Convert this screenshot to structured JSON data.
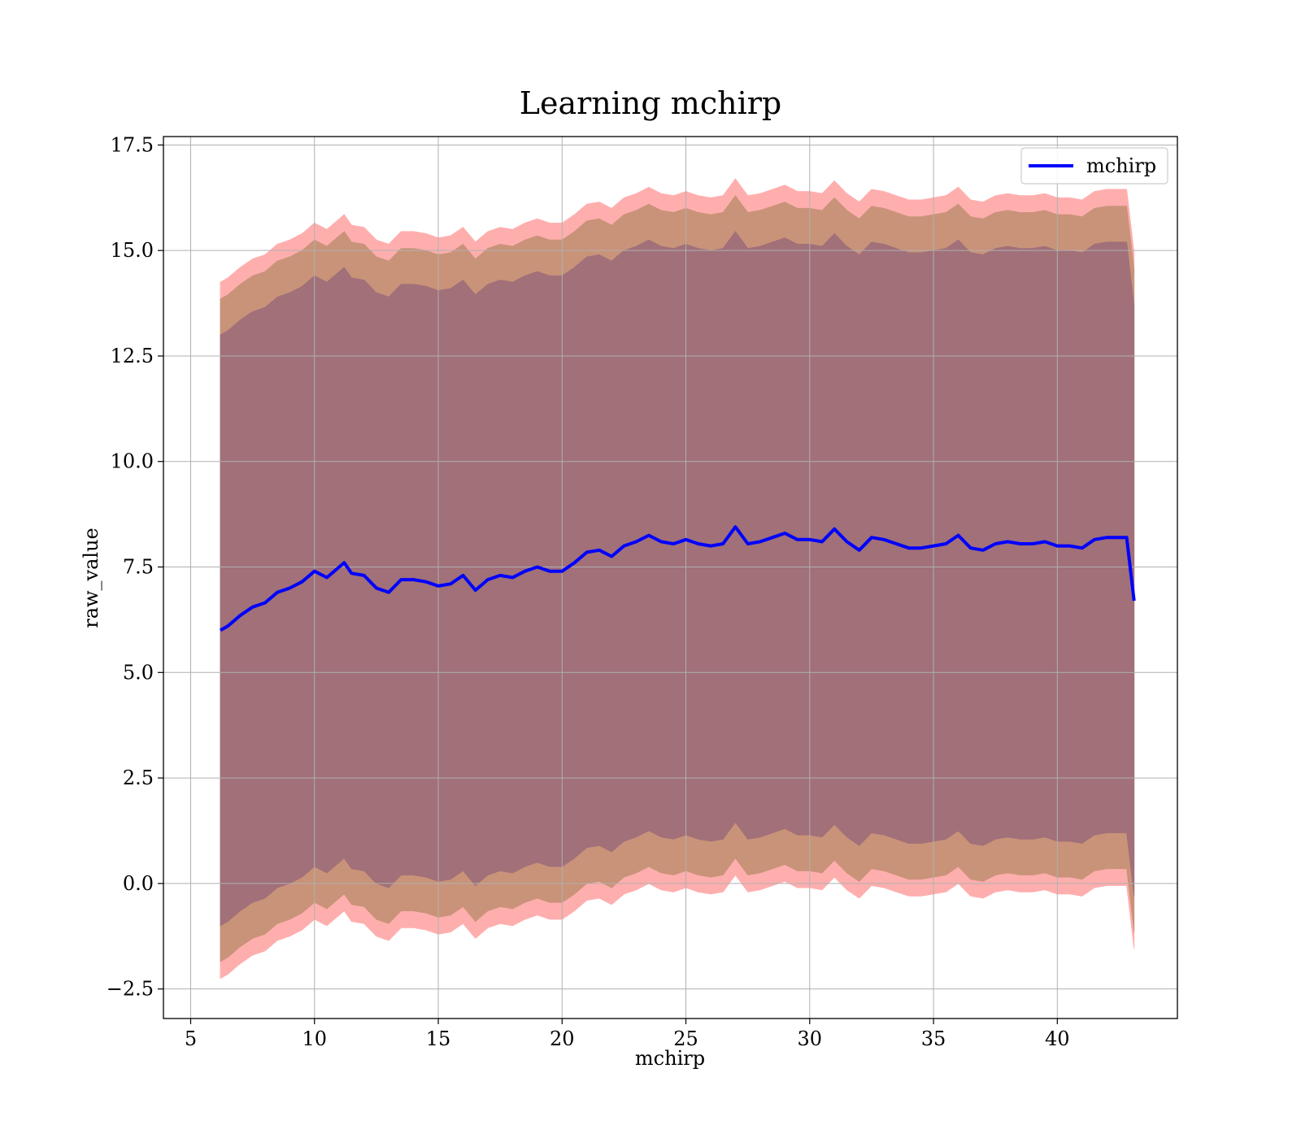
{
  "chart_data": {
    "type": "line",
    "title": "Learning mchirp",
    "xlabel": "mchirp",
    "ylabel": "raw_value",
    "xlim": [
      3.9,
      44.85
    ],
    "ylim": [
      -3.2,
      17.7
    ],
    "xticks": [
      5,
      10,
      15,
      20,
      25,
      30,
      35,
      40
    ],
    "xtick_labels": [
      "5",
      "10",
      "15",
      "20",
      "25",
      "30",
      "35",
      "40"
    ],
    "yticks": [
      -2.5,
      0.0,
      2.5,
      5.0,
      7.5,
      10.0,
      12.5,
      15.0,
      17.5
    ],
    "ytick_labels": [
      "−2.5",
      "0.0",
      "2.5",
      "5.0",
      "7.5",
      "10.0",
      "12.5",
      "15.0",
      "17.5"
    ],
    "grid": true,
    "legend": {
      "position": "top-right",
      "entries": [
        "mchirp"
      ]
    },
    "colors": {
      "line": "#0000ff",
      "band_1sigma": "#a17079",
      "band_2sigma": "#c99379",
      "band_3sigma": "#ffaeae"
    },
    "series": [
      {
        "name": "mchirp",
        "x": [
          6.2,
          6.5,
          7.0,
          7.5,
          8.0,
          8.5,
          9.0,
          9.5,
          10.0,
          10.5,
          11.0,
          11.2,
          11.5,
          12.0,
          12.5,
          13.0,
          13.5,
          14.0,
          14.5,
          15.0,
          15.5,
          16.0,
          16.5,
          17.0,
          17.5,
          18.0,
          18.5,
          19.0,
          19.5,
          20.0,
          20.5,
          21.0,
          21.5,
          22.0,
          22.5,
          23.0,
          23.5,
          24.0,
          24.5,
          25.0,
          25.5,
          26.0,
          26.5,
          27.0,
          27.5,
          28.0,
          28.5,
          29.0,
          29.5,
          30.0,
          30.5,
          31.0,
          31.5,
          32.0,
          32.5,
          33.0,
          33.5,
          34.0,
          34.5,
          35.0,
          35.5,
          36.0,
          36.5,
          37.0,
          37.5,
          38.0,
          38.5,
          39.0,
          39.5,
          40.0,
          40.5,
          41.0,
          41.5,
          42.0,
          42.5,
          42.8,
          43.0,
          43.1
        ],
        "y": [
          6.0,
          6.1,
          6.35,
          6.55,
          6.65,
          6.9,
          7.0,
          7.15,
          7.4,
          7.25,
          7.5,
          7.6,
          7.35,
          7.3,
          7.0,
          6.9,
          7.2,
          7.2,
          7.15,
          7.05,
          7.1,
          7.3,
          6.95,
          7.2,
          7.3,
          7.25,
          7.4,
          7.5,
          7.4,
          7.4,
          7.6,
          7.85,
          7.9,
          7.75,
          8.0,
          8.1,
          8.25,
          8.1,
          8.05,
          8.15,
          8.05,
          8.0,
          8.05,
          8.45,
          8.05,
          8.1,
          8.2,
          8.3,
          8.15,
          8.15,
          8.1,
          8.4,
          8.1,
          7.9,
          8.2,
          8.15,
          8.05,
          7.95,
          7.95,
          8.0,
          8.05,
          8.25,
          7.95,
          7.9,
          8.05,
          8.1,
          8.05,
          8.05,
          8.1,
          8.0,
          8.0,
          7.95,
          8.15,
          8.2,
          8.2,
          8.2,
          7.2,
          6.7
        ]
      }
    ],
    "bands": [
      {
        "level": "3sigma",
        "offset": 8.25
      },
      {
        "level": "2sigma",
        "offset": 7.85
      },
      {
        "level": "1sigma",
        "offset": 7.0
      }
    ]
  }
}
